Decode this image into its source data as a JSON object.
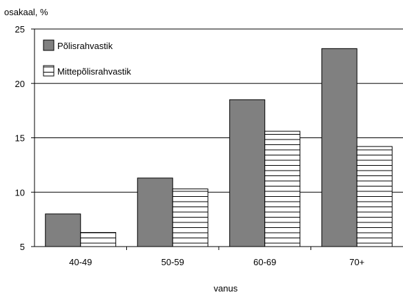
{
  "chart_data": {
    "type": "bar",
    "title": "",
    "ylabel": "osakaal, %",
    "xlabel": "vanus",
    "ylim": [
      5,
      25
    ],
    "yticks": [
      5,
      10,
      15,
      20,
      25
    ],
    "grid": true,
    "legend_position": "top-left",
    "categories": [
      "40-49",
      "50-59",
      "60-69",
      "70+"
    ],
    "series": [
      {
        "name": "Põlisrahvastik",
        "values": [
          8.0,
          11.3,
          18.5,
          23.2
        ],
        "fill": "solid-gray",
        "color": "#808080"
      },
      {
        "name": "Mittepõlisrahvastik",
        "values": [
          6.3,
          10.3,
          15.6,
          14.2
        ],
        "fill": "horizontal-stripes",
        "color": "#ffffff"
      }
    ]
  }
}
